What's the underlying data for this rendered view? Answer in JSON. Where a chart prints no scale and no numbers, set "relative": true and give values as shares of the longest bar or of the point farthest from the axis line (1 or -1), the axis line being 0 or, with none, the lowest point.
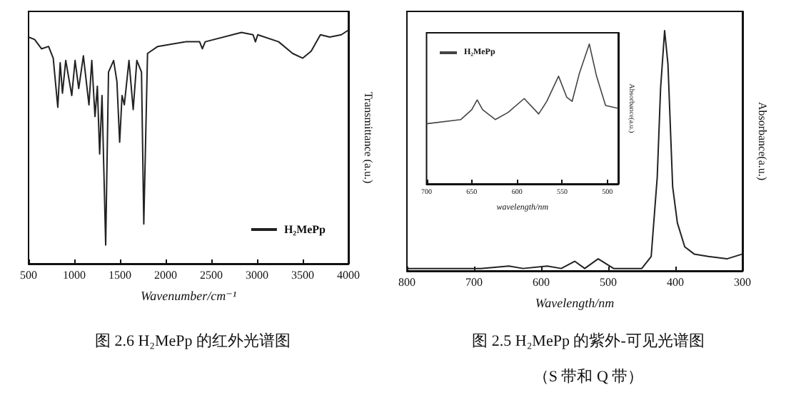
{
  "chart_data": [
    {
      "type": "line",
      "title": "图 2.6 H₂MePp 的红外光谱图",
      "xlabel": "Wavenumber/cm⁻¹",
      "ylabel": "Transmittance (a.u.)",
      "relative": true,
      "marker": "none",
      "legend": "bottom right",
      "grid": false,
      "xlim": [
        500,
        4000
      ],
      "xticks": [
        500,
        1000,
        1500,
        2000,
        2500,
        3000,
        3500,
        4000
      ],
      "series": [
        {
          "name": "H₂MePp",
          "color": "#222222",
          "x": [
            500,
            566,
            642,
            719,
            770,
            820,
            846,
            871,
            907,
            973,
            1009,
            1049,
            1100,
            1161,
            1192,
            1227,
            1253,
            1278,
            1304,
            1344,
            1375,
            1431,
            1467,
            1497,
            1523,
            1548,
            1599,
            1645,
            1685,
            1736,
            1761,
            1802,
            1914,
            2219,
            2372,
            2402,
            2433,
            2830,
            2957,
            2983,
            3008,
            3237,
            3390,
            3501,
            3593,
            3694,
            3796,
            3923,
            4000
          ],
          "values": [
            0.97,
            0.96,
            0.92,
            0.93,
            0.88,
            0.67,
            0.86,
            0.73,
            0.87,
            0.72,
            0.87,
            0.75,
            0.89,
            0.68,
            0.87,
            0.63,
            0.76,
            0.47,
            0.72,
            0.08,
            0.82,
            0.87,
            0.78,
            0.52,
            0.72,
            0.68,
            0.87,
            0.66,
            0.87,
            0.82,
            0.17,
            0.9,
            0.93,
            0.95,
            0.95,
            0.92,
            0.95,
            0.99,
            0.98,
            0.95,
            0.98,
            0.95,
            0.9,
            0.88,
            0.91,
            0.98,
            0.97,
            0.98,
            1.0
          ]
        }
      ]
    },
    {
      "type": "line",
      "title": "图 2.5 H₂MePp 的紫外-可见光谱图",
      "subtitle": "（S 带和 Q 带）",
      "xlabel": "Wavelength/nm",
      "ylabel": "Absorbance(a.u.)",
      "relative": true,
      "marker": "none",
      "legend": false,
      "grid": false,
      "xlim": [
        800,
        300
      ],
      "xticks": [
        800,
        700,
        600,
        500,
        400,
        300
      ],
      "series": [
        {
          "color": "#222222",
          "x": [
            800,
            690,
            648,
            627,
            591,
            570,
            550,
            535,
            515,
            492,
            450,
            436,
            427,
            422,
            416,
            411,
            404,
            397,
            386,
            372,
            351,
            323,
            300
          ],
          "values": [
            0.01,
            0.01,
            0.02,
            0.01,
            0.02,
            0.01,
            0.04,
            0.01,
            0.05,
            0.01,
            0.01,
            0.06,
            0.39,
            0.76,
            1.0,
            0.86,
            0.35,
            0.2,
            0.1,
            0.07,
            0.06,
            0.05,
            0.07
          ]
        }
      ]
    },
    {
      "type": "line",
      "xlabel": "wavelength/nm",
      "ylabel": "Absorbance(a.u.)",
      "relative": true,
      "marker": "none",
      "legend": "top left",
      "grid": false,
      "xlim": [
        700,
        488
      ],
      "xticks": [
        700,
        650,
        600,
        550,
        500
      ],
      "series": [
        {
          "name": "H₂MePp",
          "color": "#444444",
          "x": [
            700,
            662,
            650,
            644,
            638,
            624,
            610,
            592,
            576,
            567,
            554,
            545,
            539,
            531,
            520,
            512,
            502,
            488
          ],
          "values": [
            0.43,
            0.46,
            0.53,
            0.6,
            0.53,
            0.46,
            0.51,
            0.61,
            0.5,
            0.59,
            0.77,
            0.62,
            0.59,
            0.79,
            1.0,
            0.77,
            0.56,
            0.54
          ]
        }
      ]
    }
  ]
}
